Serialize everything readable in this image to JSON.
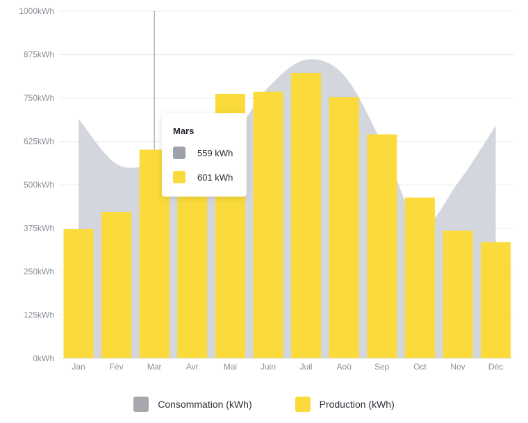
{
  "chart_data": {
    "type": "bar",
    "categories": [
      "Jan",
      "Fév",
      "Mar",
      "Avr",
      "Mai",
      "Juin",
      "Juil",
      "Aoû",
      "Sep",
      "Oct",
      "Nov",
      "Déc"
    ],
    "series": [
      {
        "name": "Consommation (kWh)",
        "kind": "area",
        "color": "#d3d6dc",
        "values": [
          690,
          560,
          559,
          590,
          635,
          780,
          860,
          815,
          620,
          385,
          505,
          670
        ]
      },
      {
        "name": "Production (kWh)",
        "kind": "bar",
        "color": "#fadb3b",
        "values": [
          372,
          422,
          601,
          555,
          762,
          768,
          822,
          752,
          645,
          463,
          368,
          335
        ]
      }
    ],
    "y_ticks": [
      "0kWh",
      "125kWh",
      "250kWh",
      "375kWh",
      "500kWh",
      "625kWh",
      "750kWh",
      "875kWh",
      "1000kWh"
    ],
    "ylim": [
      0,
      1000
    ],
    "grid": true,
    "legend_position": "bottom"
  },
  "tooltip": {
    "month": "Mars",
    "consumption_value": "559 kWh",
    "production_value": "601 kWh",
    "consumption_color": "#9fa1a8",
    "production_color": "#fadb3b"
  },
  "legend": {
    "consumption_label": "Consommation (kWh)",
    "production_label": "Production (kWh)",
    "consumption_color": "#a6a8ae",
    "production_color": "#fadb3b"
  }
}
